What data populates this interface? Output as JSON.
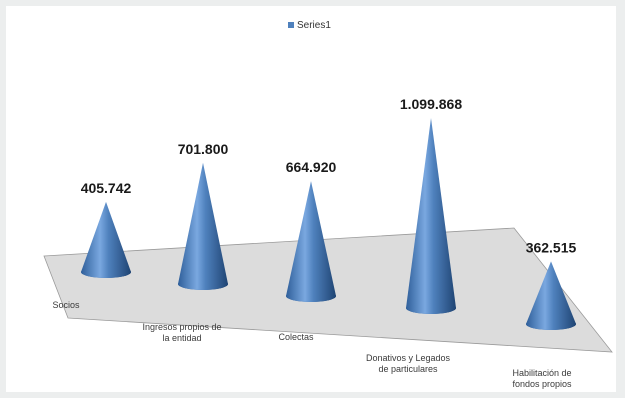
{
  "chart_data": {
    "type": "bar",
    "bar_shape": "cone",
    "categories": [
      [
        "Socios"
      ],
      [
        "Ingresos propios de",
        "la entidad"
      ],
      [
        "Colectas"
      ],
      [
        "Donativos y Legados",
        "de particulares"
      ],
      [
        "Habilitación de",
        "fondos propios"
      ]
    ],
    "series": [
      {
        "name": "Series1",
        "values": [
          405742,
          701800,
          664920,
          1099868,
          362515
        ],
        "value_labels": [
          "405.742",
          "701.800",
          "664.920",
          "1.099.868",
          "362.515"
        ],
        "color": "#4f81bd"
      }
    ],
    "ylim": [
      0,
      1100000
    ],
    "grid": false,
    "legend": "top-center",
    "floor_color": "#dcdcdc",
    "background_color": "#ffffff"
  }
}
